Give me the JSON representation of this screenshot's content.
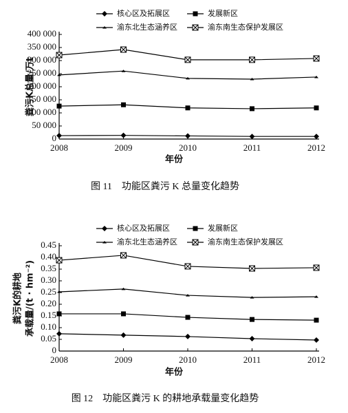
{
  "chart_data": [
    {
      "type": "line",
      "caption": "图 11　功能区粪污 K 总量变化趋势",
      "xlabel": "年份",
      "ylabel": [
        "粪污K总量/万t"
      ],
      "x": [
        2008,
        2009,
        2010,
        2011,
        2012
      ],
      "xlim": [
        2008,
        2012
      ],
      "xticks": [
        2008,
        2009,
        2010,
        2011,
        2012
      ],
      "ylim": [
        0,
        400000
      ],
      "yticks": [
        0,
        {
          "value": 50000,
          "label": "50 000"
        },
        {
          "value": 100000,
          "label": "100 000"
        },
        {
          "value": 150000,
          "label": "150 000"
        },
        {
          "value": 200000,
          "label": "200 000"
        },
        {
          "value": 250000,
          "label": "250 000"
        },
        {
          "value": 300000,
          "label": "300 000"
        },
        {
          "value": 350000,
          "label": "350 000"
        },
        {
          "value": 400000,
          "label": "400 000"
        }
      ],
      "legend": "top",
      "series": [
        {
          "name": "核心区及拓展区",
          "color": "#000000",
          "marker": "diamond",
          "values": [
            13000,
            14000,
            12000,
            10000,
            10000
          ]
        },
        {
          "name": "发展新区",
          "color": "#000000",
          "marker": "square",
          "values": [
            126000,
            131000,
            119000,
            116000,
            119000
          ]
        },
        {
          "name": "渝东北生态涵养区",
          "color": "#000000",
          "marker": "dash",
          "values": [
            245000,
            260000,
            232000,
            229000,
            237000
          ]
        },
        {
          "name": "渝东南生态保护发展区",
          "color": "#000000",
          "marker": "xbox",
          "values": [
            321000,
            342000,
            303000,
            303000,
            308000
          ]
        }
      ]
    },
    {
      "type": "line",
      "caption": "图 12　功能区粪污 K 的耕地承载量变化趋势",
      "xlabel": "年份",
      "ylabel": [
        "粪污K的耕地",
        "承载量/(t · hm⁻²)"
      ],
      "x": [
        2008,
        2009,
        2010,
        2011,
        2012
      ],
      "xlim": [
        2008,
        2012
      ],
      "xticks": [
        2008,
        2009,
        2010,
        2011,
        2012
      ],
      "ylim": [
        0,
        0.45
      ],
      "yticks": [
        0,
        0.05,
        {
          "value": 0.1,
          "label": "0.10"
        },
        0.15,
        {
          "value": 0.2,
          "label": "0.20"
        },
        0.25,
        {
          "value": 0.3,
          "label": "0.30"
        },
        0.35,
        {
          "value": 0.4,
          "label": "0.40"
        },
        0.45
      ],
      "legend": "top",
      "series": [
        {
          "name": "核心区及拓展区",
          "color": "#000000",
          "marker": "diamond",
          "values": [
            0.074,
            0.068,
            0.062,
            0.053,
            0.047
          ]
        },
        {
          "name": "发展新区",
          "color": "#000000",
          "marker": "square",
          "values": [
            0.159,
            0.159,
            0.144,
            0.135,
            0.132
          ]
        },
        {
          "name": "渝东北生态涵养区",
          "color": "#000000",
          "marker": "dash",
          "values": [
            0.253,
            0.265,
            0.238,
            0.229,
            0.232
          ]
        },
        {
          "name": "渝东南生态保护发展区",
          "color": "#000000",
          "marker": "xbox",
          "values": [
            0.388,
            0.409,
            0.362,
            0.353,
            0.356
          ]
        }
      ]
    }
  ]
}
